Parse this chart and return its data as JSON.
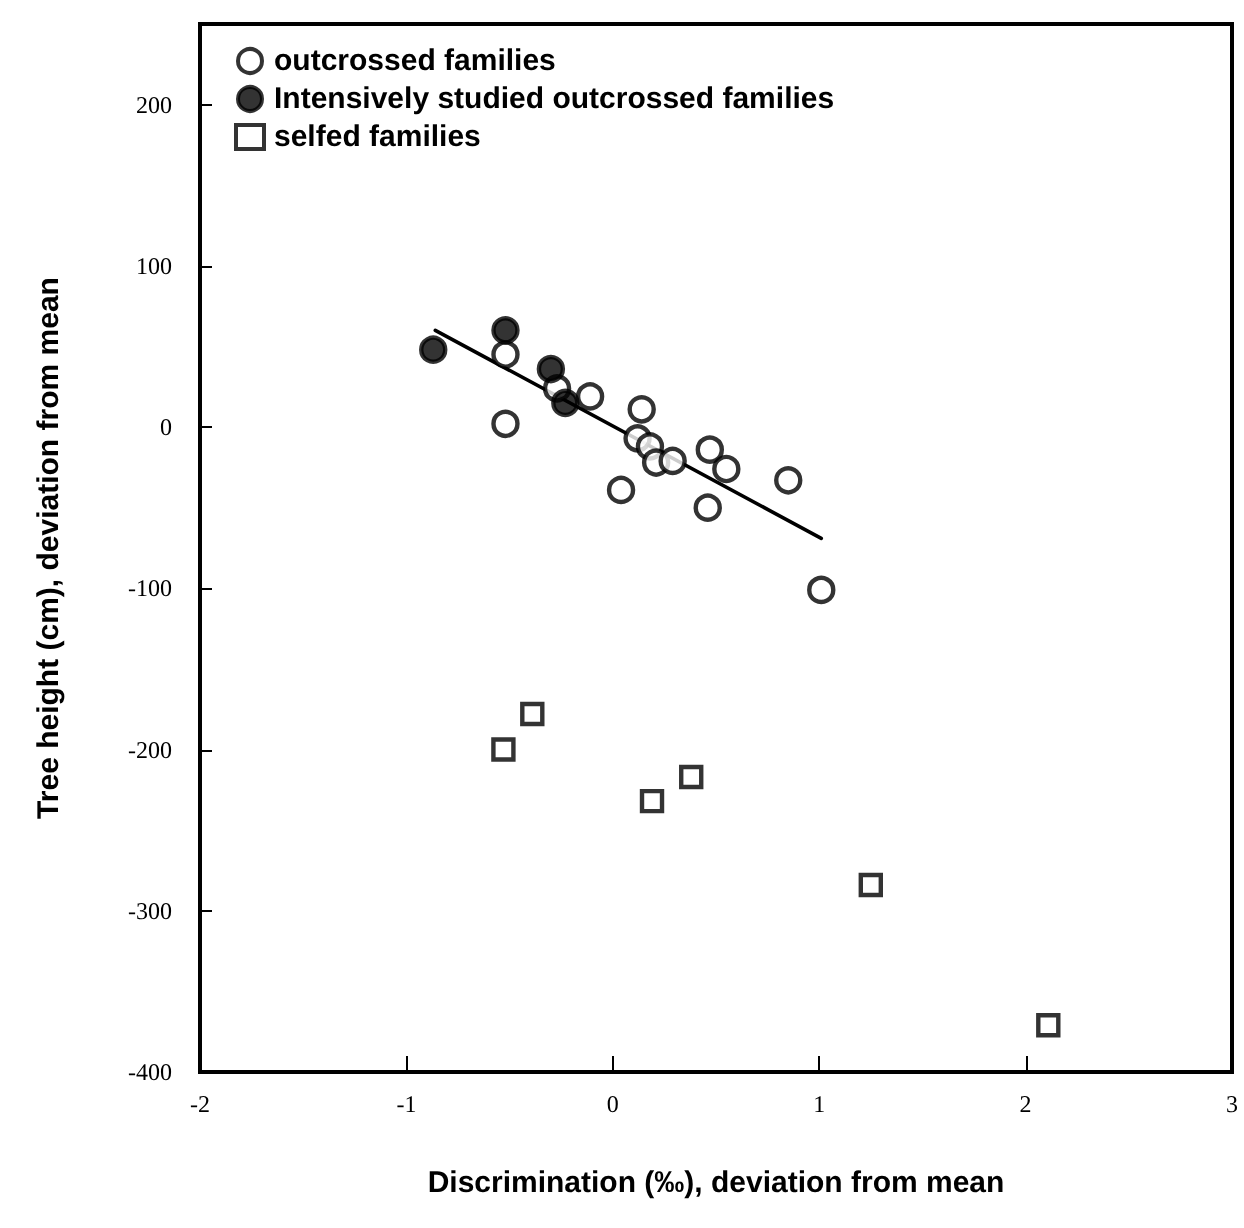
{
  "chart_data": {
    "type": "scatter",
    "xlabel": "Discrimination (‰), deviation from mean",
    "ylabel": "Tree height (cm), deviation from mean",
    "xlim": [
      -2,
      3
    ],
    "xticks": [
      -2,
      -1,
      0,
      1,
      2,
      3
    ],
    "ylim": [
      -400,
      250
    ],
    "yticks": [
      -400,
      -300,
      -200,
      -100,
      0,
      100,
      200
    ],
    "grid": false,
    "legend": "top left",
    "series": [
      {
        "name": "outcrossed families",
        "marker": "circle",
        "color": "#ffffff",
        "x": [
          -0.52,
          -0.52,
          -0.27,
          -0.11,
          0.14,
          0.12,
          0.18,
          0.21,
          0.29,
          0.04,
          0.47,
          0.55,
          0.46,
          0.85,
          1.01
        ],
        "values": [
          45,
          2,
          24,
          19,
          11,
          -7,
          -12,
          -22,
          -21,
          -39,
          -14,
          -26,
          -50,
          -33,
          -101
        ]
      },
      {
        "name": "Intensively studied outcrossed families",
        "marker": "circle",
        "color": "#000000",
        "x": [
          -0.87,
          -0.52,
          -0.3,
          -0.23
        ],
        "values": [
          48,
          60,
          36,
          15
        ]
      },
      {
        "name": "selfed families",
        "marker": "square",
        "color": "#ffffff",
        "x": [
          -0.53,
          -0.39,
          0.19,
          0.38,
          1.25,
          2.11
        ],
        "values": [
          -200,
          -178,
          -232,
          -217,
          -284,
          -371
        ]
      },
      {
        "type": "line",
        "marker": "none",
        "color": "#000000",
        "x": [
          -0.86,
          1.01
        ],
        "values": [
          60,
          -69
        ]
      }
    ]
  }
}
